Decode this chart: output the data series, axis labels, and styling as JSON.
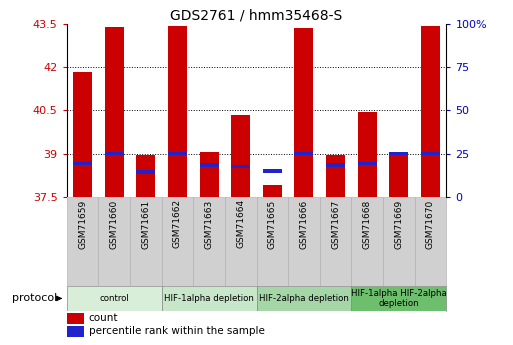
{
  "title": "GDS2761 / hmm35468-S",
  "samples": [
    "GSM71659",
    "GSM71660",
    "GSM71661",
    "GSM71662",
    "GSM71663",
    "GSM71664",
    "GSM71665",
    "GSM71666",
    "GSM71667",
    "GSM71668",
    "GSM71669",
    "GSM71670"
  ],
  "bar_tops": [
    41.85,
    43.4,
    38.95,
    43.45,
    39.05,
    40.35,
    37.9,
    43.35,
    38.95,
    40.45,
    39.05,
    43.45
  ],
  "bar_base": 37.5,
  "blue_dot_values": [
    38.65,
    39.0,
    38.35,
    39.0,
    38.6,
    38.55,
    38.4,
    39.0,
    38.6,
    38.65,
    39.0,
    39.0
  ],
  "ylim_left": [
    37.5,
    43.5
  ],
  "ylim_right": [
    0,
    100
  ],
  "yticks_left": [
    37.5,
    39,
    40.5,
    42,
    43.5
  ],
  "yticks_right": [
    0,
    25,
    50,
    75,
    100
  ],
  "ytick_labels_left": [
    "37.5",
    "39",
    "40.5",
    "42",
    "43.5"
  ],
  "ytick_labels_right": [
    "0",
    "25",
    "50",
    "75",
    "100%"
  ],
  "bar_color": "#cc0000",
  "blue_color": "#2222cc",
  "protocol_groups": [
    {
      "label": "control",
      "start": 0,
      "end": 2,
      "color": "#d9eed9"
    },
    {
      "label": "HIF-1alpha depletion",
      "start": 3,
      "end": 5,
      "color": "#c8e6c9"
    },
    {
      "label": "HIF-2alpha depletion",
      "start": 6,
      "end": 8,
      "color": "#a5d6a7"
    },
    {
      "label": "HIF-1alpha HIF-2alpha\ndepletion",
      "start": 9,
      "end": 11,
      "color": "#6dbf6d"
    }
  ],
  "legend_items": [
    {
      "label": "count",
      "color": "#cc0000"
    },
    {
      "label": "percentile rank within the sample",
      "color": "#2222cc"
    }
  ],
  "xlabel_protocol": "protocol",
  "bg_color": "#ffffff",
  "left_tick_color": "#cc0000",
  "right_tick_color": "#0000cc",
  "sample_box_color": "#d0d0d0",
  "xlim": [
    -0.5,
    11.5
  ]
}
